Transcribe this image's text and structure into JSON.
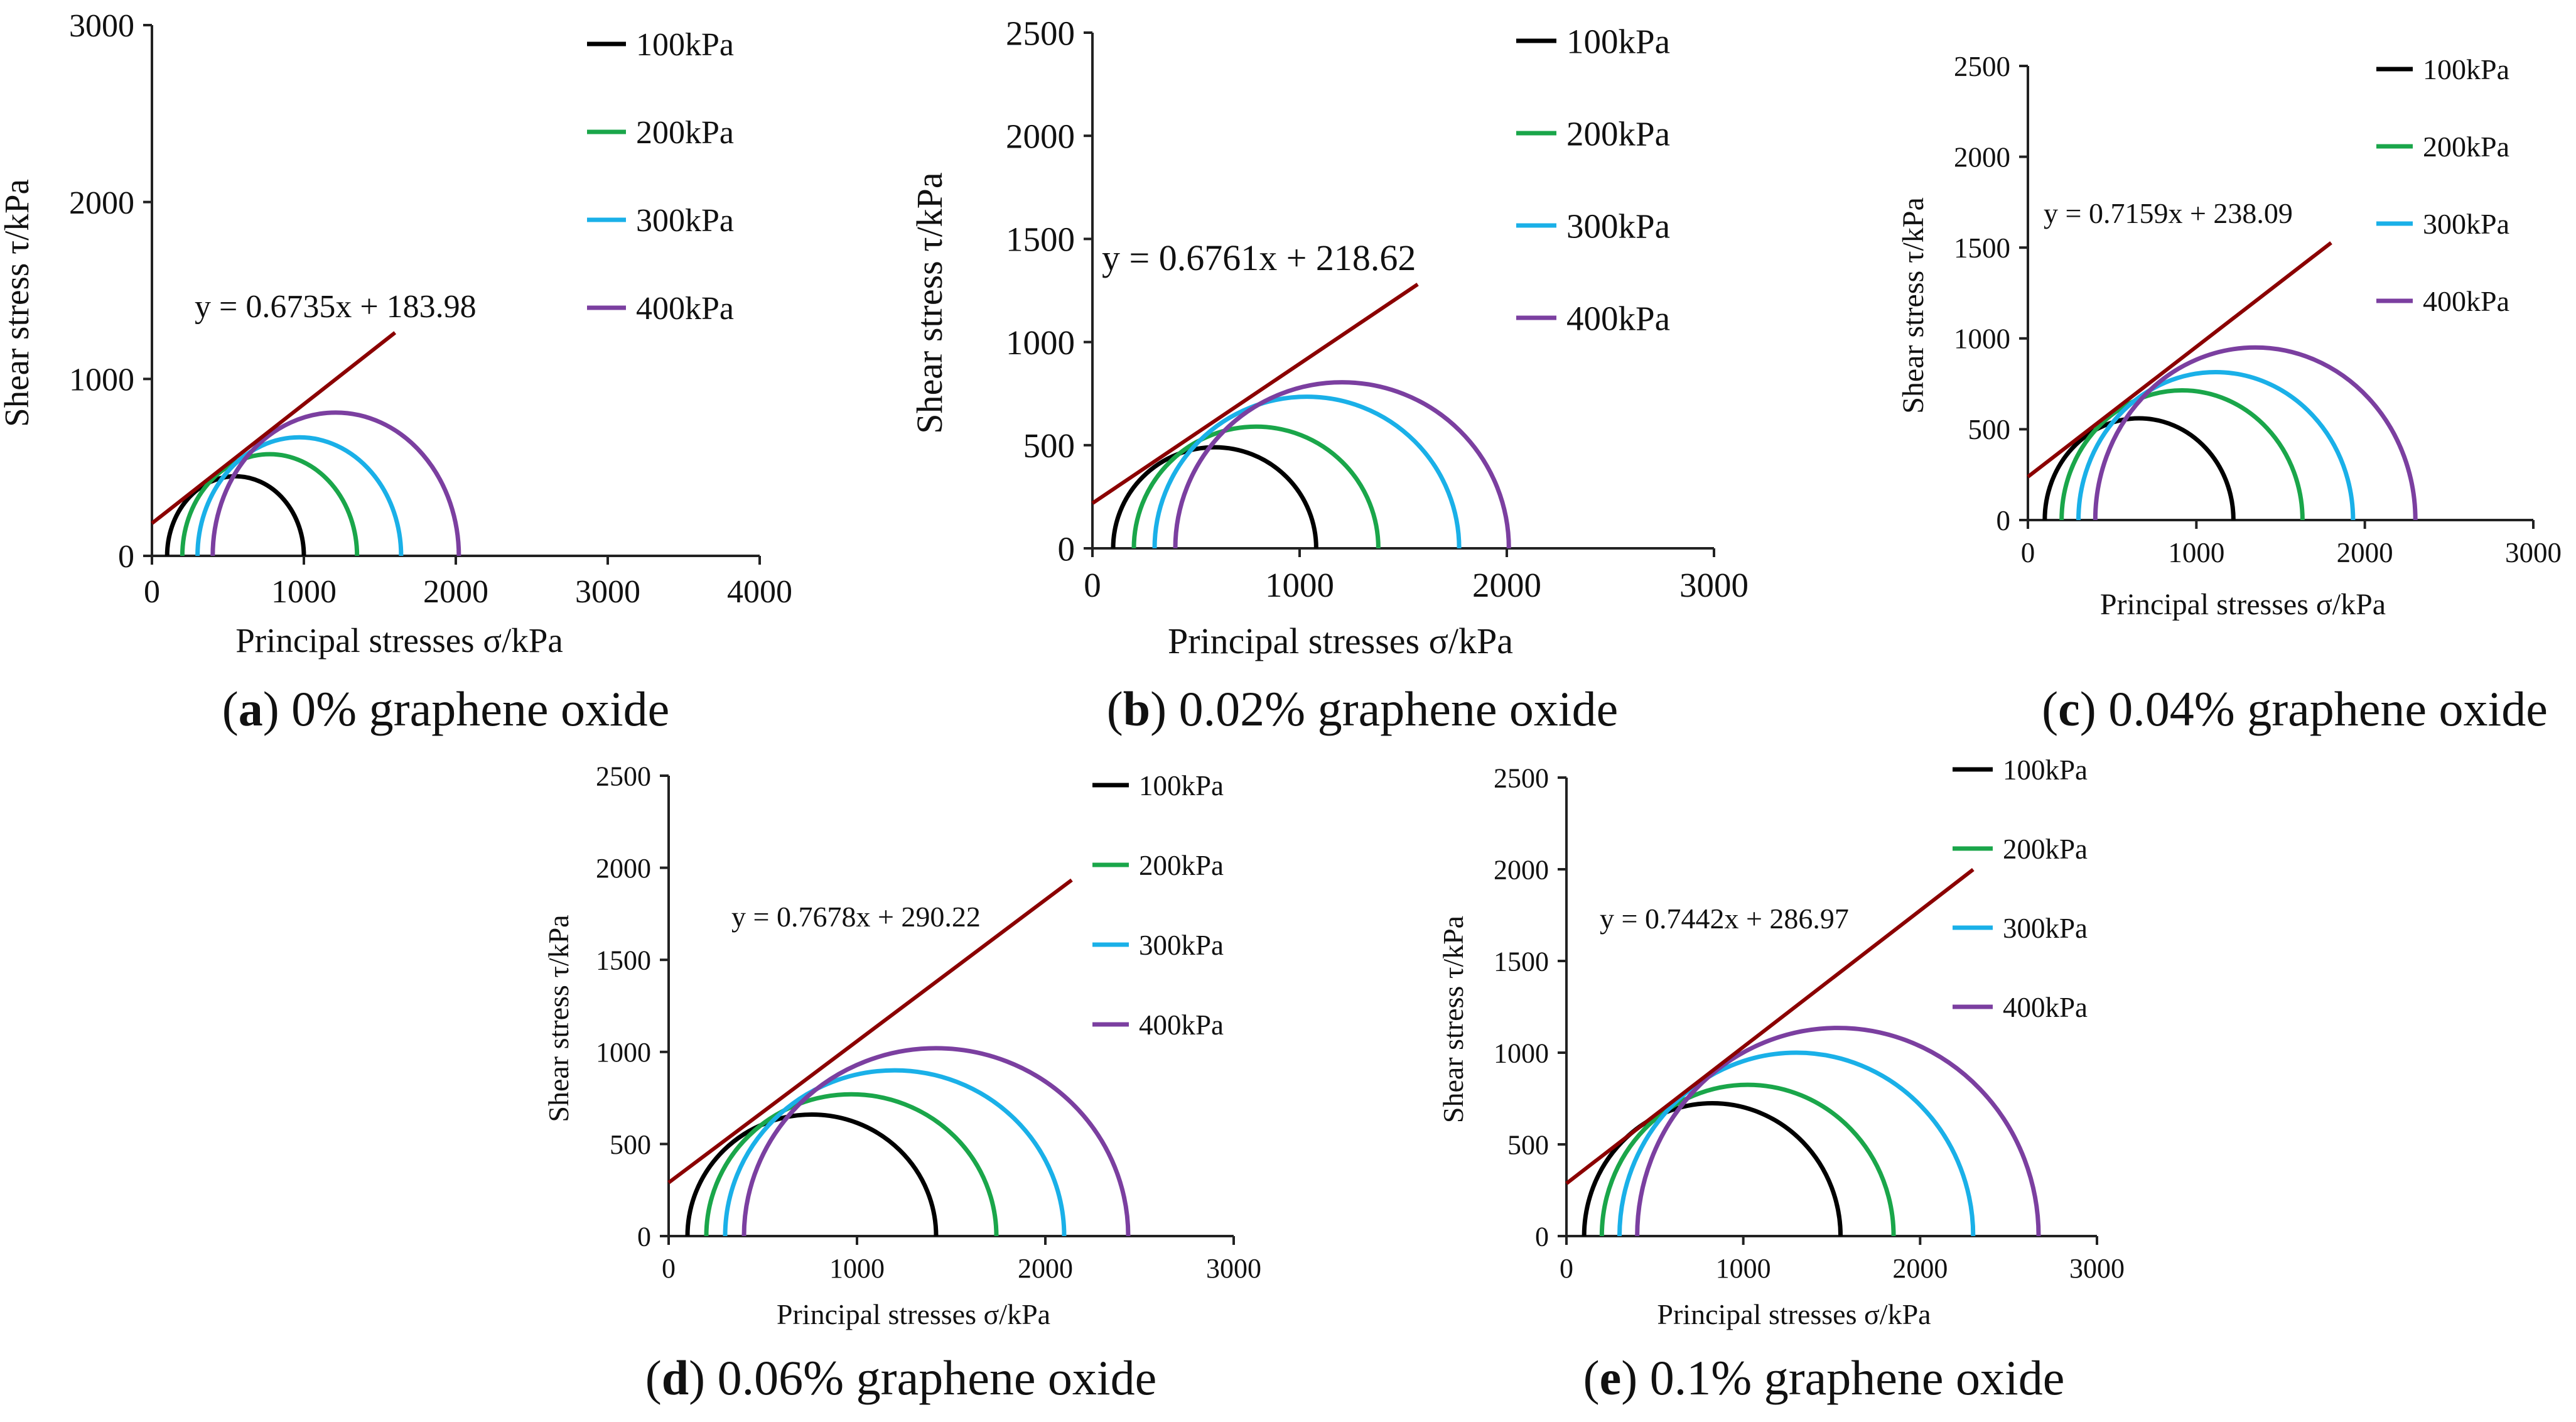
{
  "colors": {
    "axis": "#222222",
    "fit_line": "#8b0000",
    "100kPa": "#000000",
    "200kPa": "#1aa64a",
    "300kPa": "#1ab0e8",
    "400kPa": "#7b3fa0"
  },
  "chart_data": [
    {
      "id": "a",
      "type": "line",
      "title_prefix": "a",
      "title_suffix": " 0% graphene oxide",
      "xlabel": "Principal stresses σ/kPa",
      "ylabel": "Shear stress τ/kPa",
      "xlim": [
        0,
        4000
      ],
      "ylim": [
        0,
        3000
      ],
      "xticks": [
        0,
        1000,
        2000,
        3000,
        4000
      ],
      "yticks": [
        0,
        1000,
        2000,
        3000
      ],
      "legend": [
        "100kPa",
        "200kPa",
        "300kPa",
        "400kPa"
      ],
      "circles": [
        {
          "name": "100kPa",
          "sigma3": 100,
          "sigma1": 1000
        },
        {
          "name": "200kPa",
          "sigma3": 200,
          "sigma1": 1350
        },
        {
          "name": "300kPa",
          "sigma3": 300,
          "sigma1": 1640
        },
        {
          "name": "400kPa",
          "sigma3": 400,
          "sigma1": 2020
        }
      ],
      "fit": {
        "slope": 0.6735,
        "intercept": 183.98,
        "x_end": 1600,
        "equation": "y = 0.6735x + 183.98"
      }
    },
    {
      "id": "b",
      "type": "line",
      "title_prefix": "b",
      "title_suffix": " 0.02% graphene oxide",
      "xlabel": "Principal stresses σ/kPa",
      "ylabel": "Shear stress τ/kPa",
      "xlim": [
        0,
        3000
      ],
      "ylim": [
        0,
        2500
      ],
      "xticks": [
        0,
        1000,
        2000,
        3000
      ],
      "yticks": [
        0,
        500,
        1000,
        1500,
        2000,
        2500
      ],
      "legend": [
        "100kPa",
        "200kPa",
        "300kPa",
        "400kPa"
      ],
      "circles": [
        {
          "name": "100kPa",
          "sigma3": 100,
          "sigma1": 1080
        },
        {
          "name": "200kPa",
          "sigma3": 200,
          "sigma1": 1380
        },
        {
          "name": "300kPa",
          "sigma3": 300,
          "sigma1": 1770
        },
        {
          "name": "400kPa",
          "sigma3": 400,
          "sigma1": 2010
        }
      ],
      "fit": {
        "slope": 0.6761,
        "intercept": 218.62,
        "x_end": 1570,
        "equation": "y = 0.6761x + 218.62"
      }
    },
    {
      "id": "c",
      "type": "line",
      "title_prefix": "c",
      "title_suffix": " 0.04% graphene oxide",
      "xlabel": "Principal stresses σ/kPa",
      "ylabel": "Shear stress τ/kPa",
      "xlim": [
        0,
        3000
      ],
      "ylim": [
        0,
        2500
      ],
      "xticks": [
        0,
        1000,
        2000,
        3000
      ],
      "yticks": [
        0,
        500,
        1000,
        1500,
        2000,
        2500
      ],
      "legend": [
        "100kPa",
        "200kPa",
        "300kPa",
        "400kPa"
      ],
      "circles": [
        {
          "name": "100kPa",
          "sigma3": 100,
          "sigma1": 1220
        },
        {
          "name": "200kPa",
          "sigma3": 200,
          "sigma1": 1630
        },
        {
          "name": "300kPa",
          "sigma3": 300,
          "sigma1": 1930
        },
        {
          "name": "400kPa",
          "sigma3": 400,
          "sigma1": 2300
        }
      ],
      "fit": {
        "slope": 0.7159,
        "intercept": 238.09,
        "x_end": 1800,
        "equation": "y = 0.7159x + 238.09"
      }
    },
    {
      "id": "d",
      "type": "line",
      "title_prefix": "d",
      "title_suffix": " 0.06% graphene oxide",
      "xlabel": "Principal stresses σ/kPa",
      "ylabel": "Shear stress τ/kPa",
      "xlim": [
        0,
        3000
      ],
      "ylim": [
        0,
        2500
      ],
      "xticks": [
        0,
        1000,
        2000,
        3000
      ],
      "yticks": [
        0,
        500,
        1000,
        1500,
        2000,
        2500
      ],
      "legend": [
        "100kPa",
        "200kPa",
        "300kPa",
        "400kPa"
      ],
      "circles": [
        {
          "name": "100kPa",
          "sigma3": 100,
          "sigma1": 1420
        },
        {
          "name": "200kPa",
          "sigma3": 200,
          "sigma1": 1740
        },
        {
          "name": "300kPa",
          "sigma3": 300,
          "sigma1": 2100
        },
        {
          "name": "400kPa",
          "sigma3": 400,
          "sigma1": 2440
        }
      ],
      "fit": {
        "slope": 0.7678,
        "intercept": 290.22,
        "x_end": 2140,
        "equation": "y = 0.7678x + 290.22"
      }
    },
    {
      "id": "e",
      "type": "line",
      "title_prefix": "e",
      "title_suffix": " 0.1% graphene oxide",
      "xlabel": "Principal stresses σ/kPa",
      "ylabel": "Shear stress τ/kPa",
      "xlim": [
        0,
        3000
      ],
      "ylim": [
        0,
        2500
      ],
      "xticks": [
        0,
        1000,
        2000,
        3000
      ],
      "yticks": [
        0,
        500,
        1000,
        1500,
        2000,
        2500
      ],
      "legend": [
        "100kPa",
        "200kPa",
        "300kPa",
        "400kPa"
      ],
      "circles": [
        {
          "name": "100kPa",
          "sigma3": 100,
          "sigma1": 1550
        },
        {
          "name": "200kPa",
          "sigma3": 200,
          "sigma1": 1850
        },
        {
          "name": "300kPa",
          "sigma3": 300,
          "sigma1": 2300
        },
        {
          "name": "400kPa",
          "sigma3": 400,
          "sigma1": 2670
        }
      ],
      "fit": {
        "slope": 0.7442,
        "intercept": 286.97,
        "x_end": 2300,
        "equation": "y = 0.7442x + 286.97"
      }
    }
  ]
}
